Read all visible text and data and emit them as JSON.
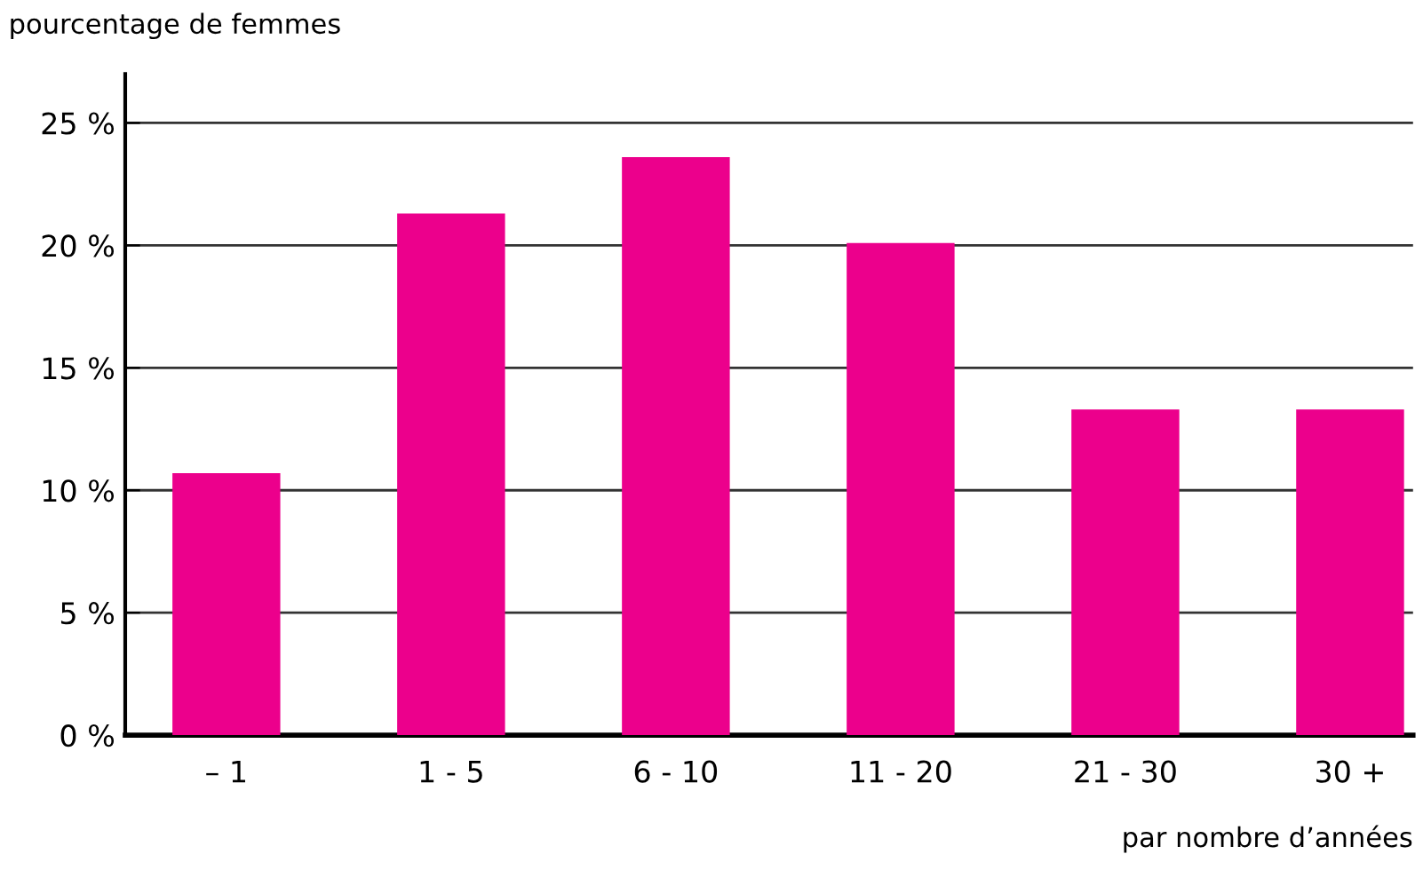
{
  "chart_data": {
    "type": "bar",
    "ylabel": "pourcentage de femmes",
    "xlabel": "par nombre d’années",
    "categories": [
      "– 1",
      "1 - 5",
      "6 - 10",
      "11 - 20",
      "21 - 30",
      "30 +"
    ],
    "values": [
      10.7,
      21.3,
      23.6,
      20.1,
      13.3,
      13.3
    ],
    "color": "#ec008c",
    "ylim": [
      0,
      27
    ],
    "yticks": [
      {
        "value": 0,
        "label": "0 %"
      },
      {
        "value": 5,
        "label": "5 %"
      },
      {
        "value": 10,
        "label": "10 %"
      },
      {
        "value": 15,
        "label": "15 %"
      },
      {
        "value": 20,
        "label": "20 %"
      },
      {
        "value": 25,
        "label": "25 %"
      }
    ],
    "grid": "y"
  }
}
